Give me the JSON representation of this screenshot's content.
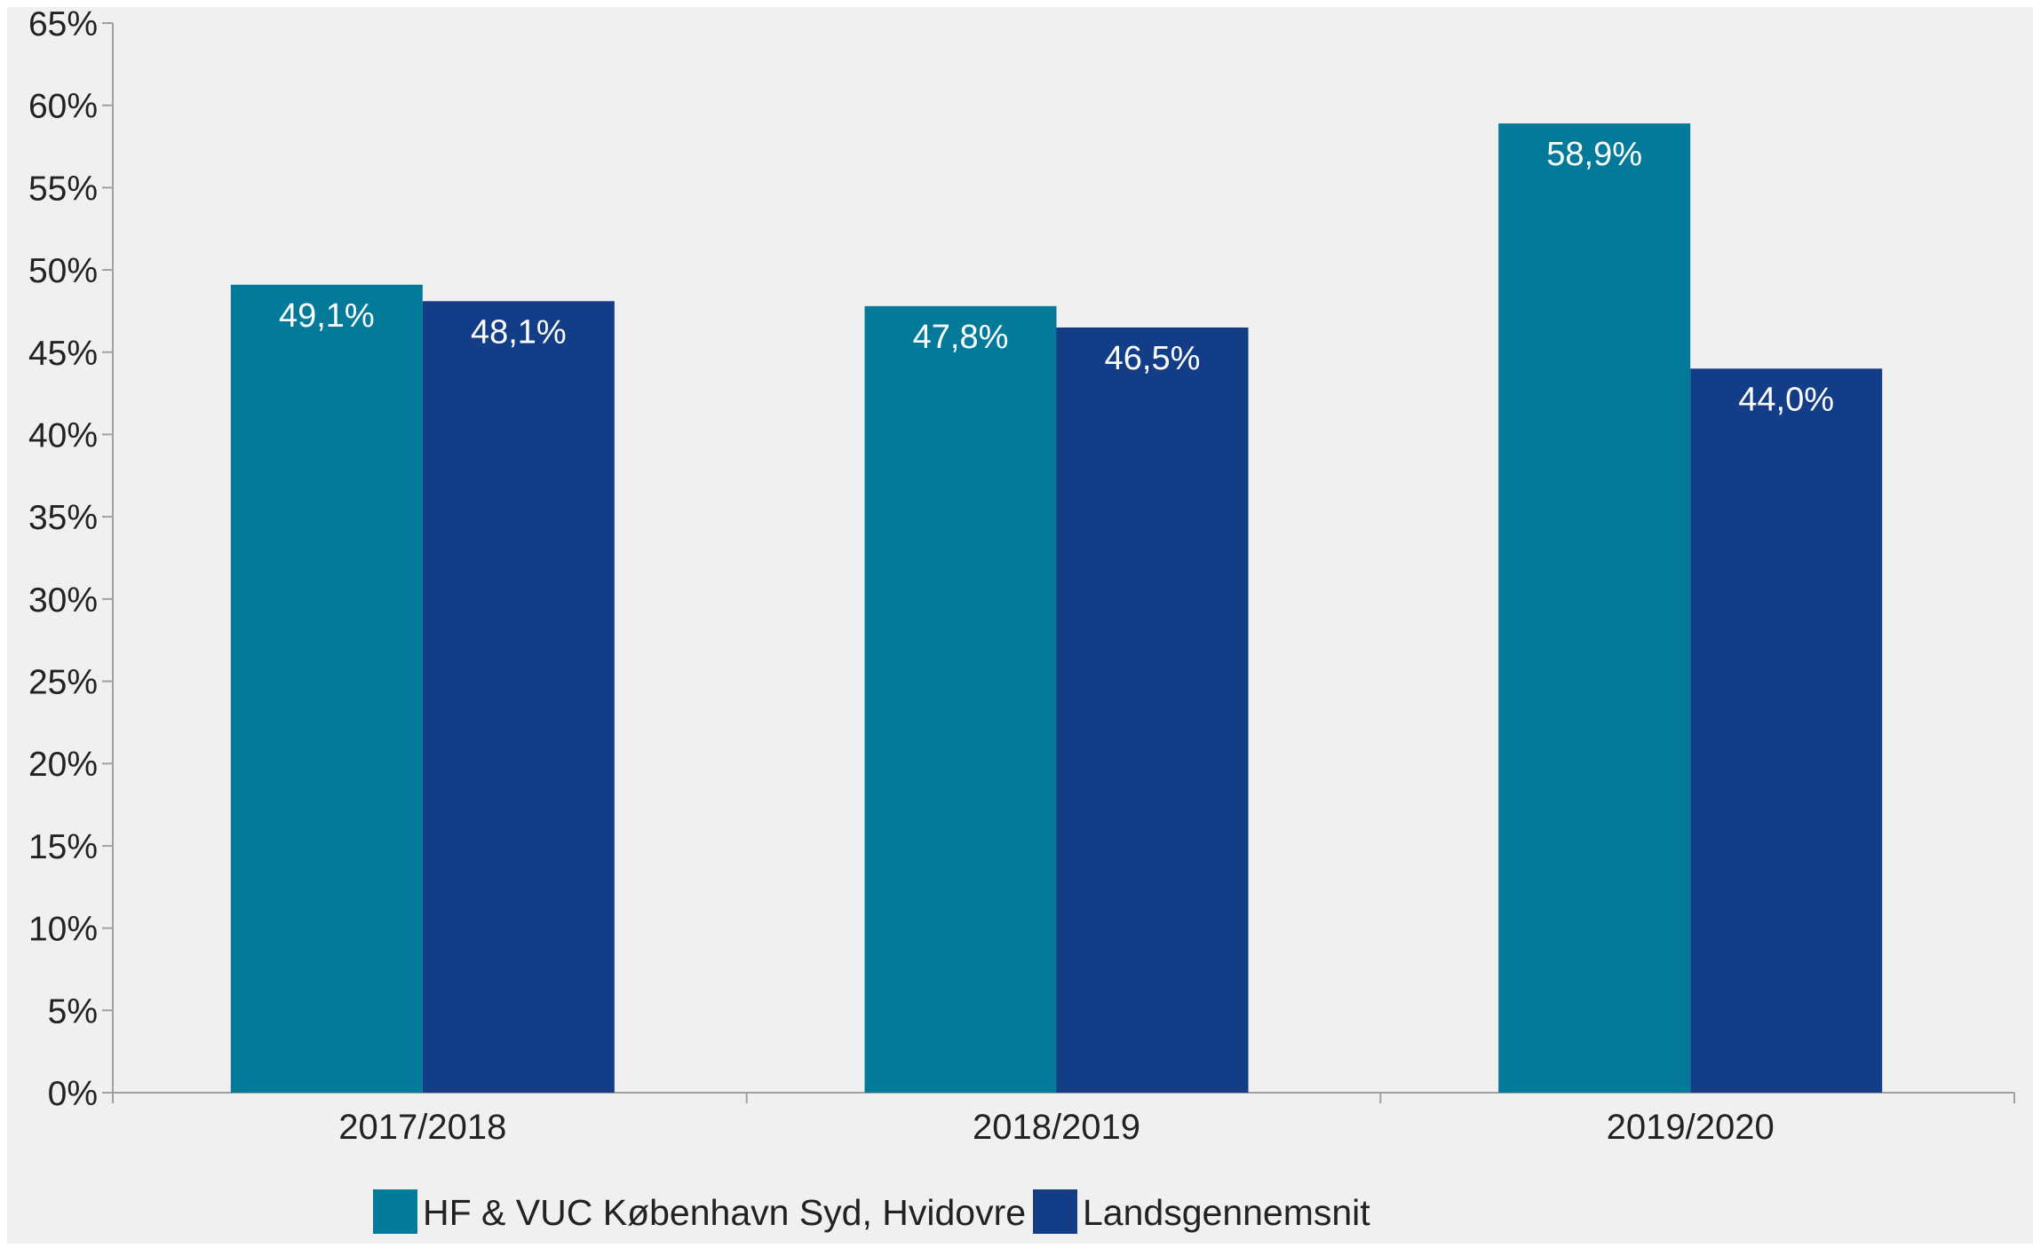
{
  "chart_data": {
    "type": "bar",
    "categories": [
      "2017/2018",
      "2018/2019",
      "2019/2020"
    ],
    "series": [
      {
        "name": "HF & VUC København Syd, Hvidovre",
        "color": "#037a9a",
        "values": [
          49.1,
          47.8,
          58.9
        ],
        "labels": [
          "49,1%",
          "47,8%",
          "58,9%"
        ]
      },
      {
        "name": "Landsgennemsnit",
        "color": "#133e87",
        "values": [
          48.1,
          46.5,
          44.0
        ],
        "labels": [
          "48,1%",
          "46,5%",
          "44,0%"
        ]
      }
    ],
    "ylim": [
      0,
      65
    ],
    "yticks": [
      0,
      5,
      10,
      15,
      20,
      25,
      30,
      35,
      40,
      45,
      50,
      55,
      60,
      65
    ],
    "ytick_labels": [
      "0%",
      "5%",
      "10%",
      "15%",
      "20%",
      "25%",
      "30%",
      "35%",
      "40%",
      "45%",
      "50%",
      "55%",
      "60%",
      "65%"
    ],
    "grid": false,
    "legend_position": "bottom",
    "background_color": "#f0f0f0",
    "axis_color": "#a0a0a0"
  }
}
